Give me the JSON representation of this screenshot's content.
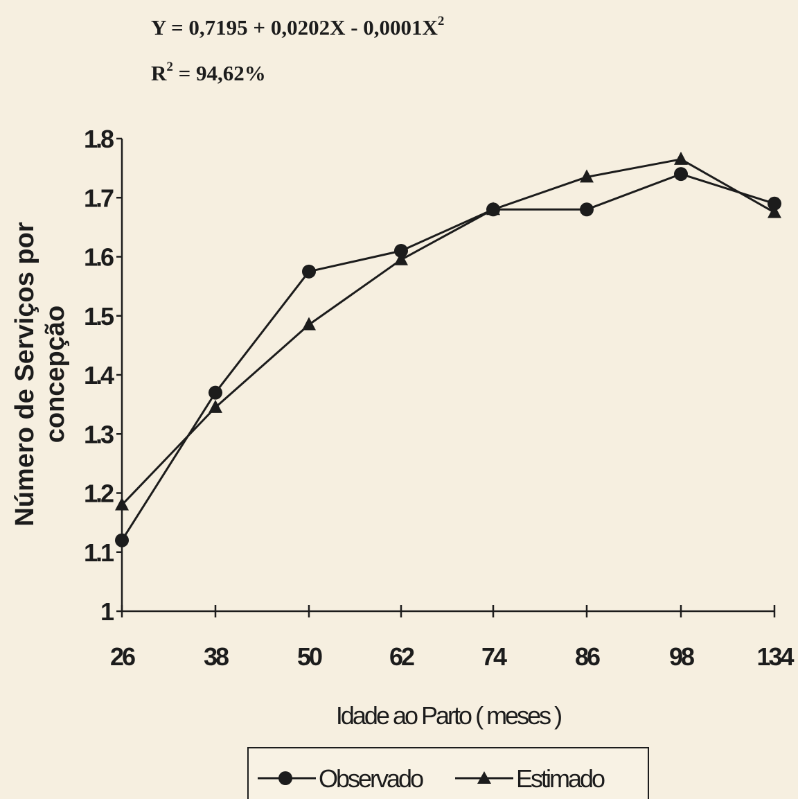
{
  "annotations": {
    "equation_main": "Y = 0,7195 + 0,0202X - 0,0001X",
    "equation_exp": "2",
    "r2_base": "R",
    "r2_exp": "2",
    "r2_value": " = 94,62%"
  },
  "chart_data": {
    "type": "line",
    "categories": [
      "26",
      "38",
      "50",
      "62",
      "74",
      "86",
      "98",
      "134"
    ],
    "series": [
      {
        "name": "Observado",
        "marker": "circle",
        "values": [
          1.12,
          1.37,
          1.575,
          1.61,
          1.68,
          1.68,
          1.74,
          1.69
        ]
      },
      {
        "name": "Estimado",
        "marker": "triangle",
        "values": [
          1.18,
          1.345,
          1.485,
          1.595,
          1.68,
          1.735,
          1.765,
          1.675
        ]
      }
    ],
    "ylabel_line1": "Número de Serviços por",
    "ylabel_line2": "concepção",
    "xlabel": "Idade ao Parto ( meses )",
    "ylim": [
      1,
      1.8
    ],
    "yticks": [
      1,
      1.1,
      1.2,
      1.3,
      1.4,
      1.5,
      1.6,
      1.7,
      1.8
    ],
    "ytick_labels": [
      "1",
      "1.1",
      "1.2",
      "1.3",
      "1.4",
      "1.5",
      "1.6",
      "1.7",
      "1.8"
    ],
    "grid": false,
    "legend_position": "bottom-center"
  },
  "colors": {
    "background": "#f6efe0",
    "ink": "#1c1c1c"
  }
}
